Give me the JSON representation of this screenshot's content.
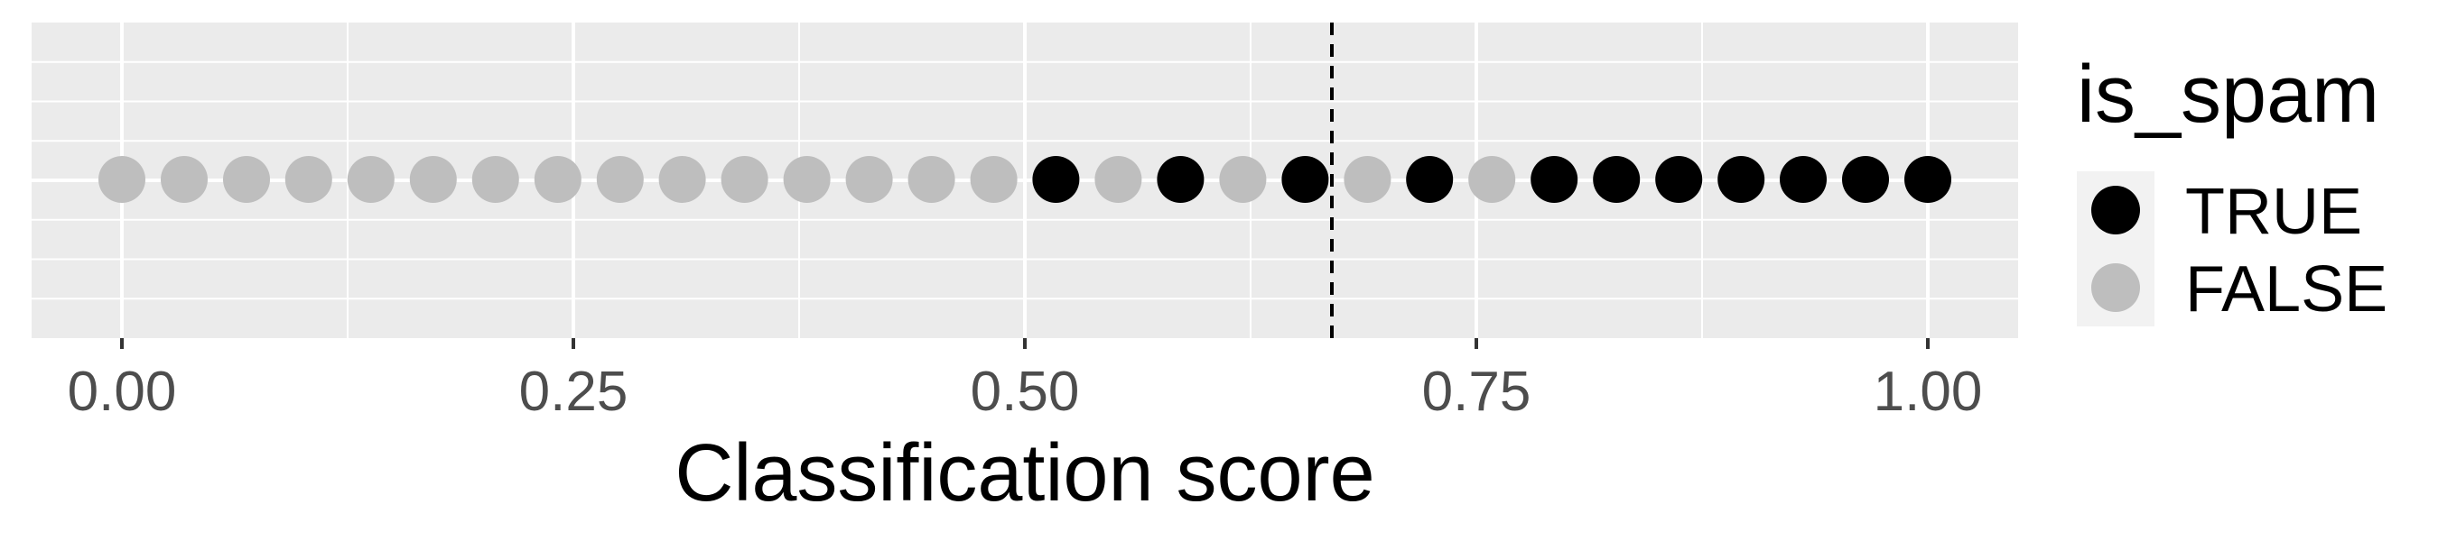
{
  "chart_data": {
    "type": "scatter",
    "title": "",
    "xlabel": "Classification score",
    "ylabel": "",
    "xlim": [
      -0.05,
      1.05
    ],
    "x_ticks": [
      0.0,
      0.25,
      0.5,
      0.75,
      1.0
    ],
    "x_tick_labels": [
      "0.00",
      "0.25",
      "0.50",
      "0.75",
      "1.00"
    ],
    "threshold": 0.67,
    "threshold_style": "dashed",
    "grid": true,
    "legend": {
      "title": "is_spam",
      "position": "right",
      "entries": [
        {
          "label": "TRUE",
          "color": "#000000"
        },
        {
          "label": "FALSE",
          "color": "#bebebe"
        }
      ]
    },
    "points": [
      {
        "x": 0.0,
        "is_spam": false
      },
      {
        "x": 0.0345,
        "is_spam": false
      },
      {
        "x": 0.069,
        "is_spam": false
      },
      {
        "x": 0.1034,
        "is_spam": false
      },
      {
        "x": 0.1379,
        "is_spam": false
      },
      {
        "x": 0.1724,
        "is_spam": false
      },
      {
        "x": 0.2069,
        "is_spam": false
      },
      {
        "x": 0.2414,
        "is_spam": false
      },
      {
        "x": 0.2759,
        "is_spam": false
      },
      {
        "x": 0.3103,
        "is_spam": false
      },
      {
        "x": 0.3448,
        "is_spam": false
      },
      {
        "x": 0.3793,
        "is_spam": false
      },
      {
        "x": 0.4138,
        "is_spam": false
      },
      {
        "x": 0.4483,
        "is_spam": false
      },
      {
        "x": 0.4828,
        "is_spam": false
      },
      {
        "x": 0.5172,
        "is_spam": true
      },
      {
        "x": 0.5517,
        "is_spam": false
      },
      {
        "x": 0.5862,
        "is_spam": true
      },
      {
        "x": 0.6207,
        "is_spam": false
      },
      {
        "x": 0.6552,
        "is_spam": true
      },
      {
        "x": 0.6897,
        "is_spam": false
      },
      {
        "x": 0.7241,
        "is_spam": true
      },
      {
        "x": 0.7586,
        "is_spam": false
      },
      {
        "x": 0.7931,
        "is_spam": true
      },
      {
        "x": 0.8276,
        "is_spam": true
      },
      {
        "x": 0.8621,
        "is_spam": true
      },
      {
        "x": 0.8966,
        "is_spam": true
      },
      {
        "x": 0.931,
        "is_spam": true
      },
      {
        "x": 0.9655,
        "is_spam": true
      },
      {
        "x": 1.0,
        "is_spam": true
      }
    ],
    "colors": {
      "panel_background": "#ebebeb",
      "grid_line": "#ffffff",
      "legend_key_background": "#f2f2f2"
    }
  }
}
